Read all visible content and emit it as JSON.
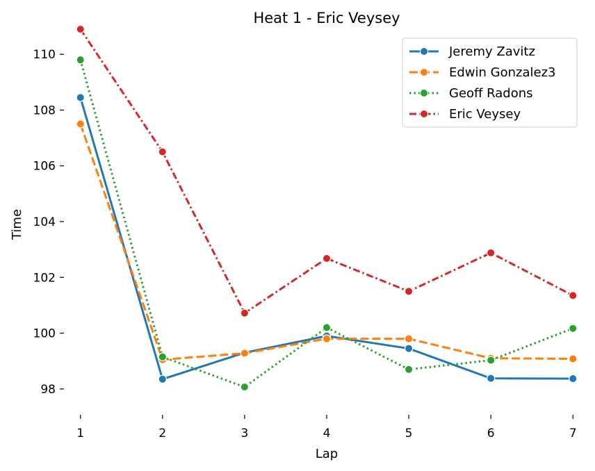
{
  "chart_data": {
    "type": "line",
    "title": "Heat 1 - Eric Veysey",
    "xlabel": "Lap",
    "ylabel": "Time",
    "x": [
      1,
      2,
      3,
      4,
      5,
      6,
      7
    ],
    "xlim": [
      0.85,
      7.15
    ],
    "ylim": [
      97.2,
      110.9
    ],
    "xticks": [
      1,
      2,
      3,
      4,
      5,
      6,
      7
    ],
    "yticks": [
      98,
      100,
      102,
      104,
      106,
      108,
      110
    ],
    "grid": false,
    "legend_position": "top-right",
    "series": [
      {
        "name": "Jeremy Zavitz",
        "color": "#1f77b4",
        "linestyle": "solid",
        "values": [
          108.45,
          98.35,
          99.3,
          99.9,
          99.45,
          98.38,
          98.37
        ]
      },
      {
        "name": "Edwin Gonzalez3",
        "color": "#ff7f0e",
        "linestyle": "dashed",
        "values": [
          107.5,
          99.05,
          99.28,
          99.8,
          99.8,
          99.1,
          99.08
        ]
      },
      {
        "name": "Geoff Radons",
        "color": "#2ca02c",
        "linestyle": "dotted",
        "values": [
          109.8,
          99.15,
          98.07,
          100.2,
          98.7,
          99.03,
          100.17
        ]
      },
      {
        "name": "Eric Veysey",
        "color": "#d62728",
        "linestyle": "dashdot",
        "values": [
          110.9,
          106.5,
          100.72,
          102.68,
          101.5,
          102.88,
          101.35
        ]
      }
    ]
  }
}
